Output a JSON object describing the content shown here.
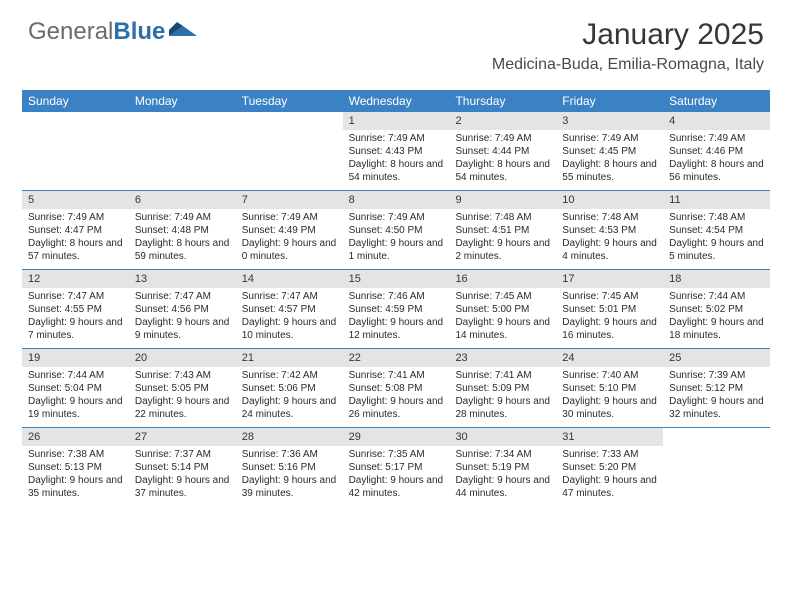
{
  "brand": {
    "part1": "General",
    "part2": "Blue"
  },
  "title": "January 2025",
  "location": "Medicina-Buda, Emilia-Romagna, Italy",
  "colors": {
    "header_bar": "#3b82c4",
    "daynum_bg": "#e4e4e4",
    "logo_gray": "#6b6b6b",
    "logo_blue": "#2f6fa8",
    "text": "#363636"
  },
  "day_headers": [
    "Sunday",
    "Monday",
    "Tuesday",
    "Wednesday",
    "Thursday",
    "Friday",
    "Saturday"
  ],
  "weeks": [
    [
      {
        "n": "",
        "sr": "",
        "ss": "",
        "dl": ""
      },
      {
        "n": "",
        "sr": "",
        "ss": "",
        "dl": ""
      },
      {
        "n": "",
        "sr": "",
        "ss": "",
        "dl": ""
      },
      {
        "n": "1",
        "sr": "Sunrise: 7:49 AM",
        "ss": "Sunset: 4:43 PM",
        "dl": "Daylight: 8 hours and 54 minutes."
      },
      {
        "n": "2",
        "sr": "Sunrise: 7:49 AM",
        "ss": "Sunset: 4:44 PM",
        "dl": "Daylight: 8 hours and 54 minutes."
      },
      {
        "n": "3",
        "sr": "Sunrise: 7:49 AM",
        "ss": "Sunset: 4:45 PM",
        "dl": "Daylight: 8 hours and 55 minutes."
      },
      {
        "n": "4",
        "sr": "Sunrise: 7:49 AM",
        "ss": "Sunset: 4:46 PM",
        "dl": "Daylight: 8 hours and 56 minutes."
      }
    ],
    [
      {
        "n": "5",
        "sr": "Sunrise: 7:49 AM",
        "ss": "Sunset: 4:47 PM",
        "dl": "Daylight: 8 hours and 57 minutes."
      },
      {
        "n": "6",
        "sr": "Sunrise: 7:49 AM",
        "ss": "Sunset: 4:48 PM",
        "dl": "Daylight: 8 hours and 59 minutes."
      },
      {
        "n": "7",
        "sr": "Sunrise: 7:49 AM",
        "ss": "Sunset: 4:49 PM",
        "dl": "Daylight: 9 hours and 0 minutes."
      },
      {
        "n": "8",
        "sr": "Sunrise: 7:49 AM",
        "ss": "Sunset: 4:50 PM",
        "dl": "Daylight: 9 hours and 1 minute."
      },
      {
        "n": "9",
        "sr": "Sunrise: 7:48 AM",
        "ss": "Sunset: 4:51 PM",
        "dl": "Daylight: 9 hours and 2 minutes."
      },
      {
        "n": "10",
        "sr": "Sunrise: 7:48 AM",
        "ss": "Sunset: 4:53 PM",
        "dl": "Daylight: 9 hours and 4 minutes."
      },
      {
        "n": "11",
        "sr": "Sunrise: 7:48 AM",
        "ss": "Sunset: 4:54 PM",
        "dl": "Daylight: 9 hours and 5 minutes."
      }
    ],
    [
      {
        "n": "12",
        "sr": "Sunrise: 7:47 AM",
        "ss": "Sunset: 4:55 PM",
        "dl": "Daylight: 9 hours and 7 minutes."
      },
      {
        "n": "13",
        "sr": "Sunrise: 7:47 AM",
        "ss": "Sunset: 4:56 PM",
        "dl": "Daylight: 9 hours and 9 minutes."
      },
      {
        "n": "14",
        "sr": "Sunrise: 7:47 AM",
        "ss": "Sunset: 4:57 PM",
        "dl": "Daylight: 9 hours and 10 minutes."
      },
      {
        "n": "15",
        "sr": "Sunrise: 7:46 AM",
        "ss": "Sunset: 4:59 PM",
        "dl": "Daylight: 9 hours and 12 minutes."
      },
      {
        "n": "16",
        "sr": "Sunrise: 7:45 AM",
        "ss": "Sunset: 5:00 PM",
        "dl": "Daylight: 9 hours and 14 minutes."
      },
      {
        "n": "17",
        "sr": "Sunrise: 7:45 AM",
        "ss": "Sunset: 5:01 PM",
        "dl": "Daylight: 9 hours and 16 minutes."
      },
      {
        "n": "18",
        "sr": "Sunrise: 7:44 AM",
        "ss": "Sunset: 5:02 PM",
        "dl": "Daylight: 9 hours and 18 minutes."
      }
    ],
    [
      {
        "n": "19",
        "sr": "Sunrise: 7:44 AM",
        "ss": "Sunset: 5:04 PM",
        "dl": "Daylight: 9 hours and 19 minutes."
      },
      {
        "n": "20",
        "sr": "Sunrise: 7:43 AM",
        "ss": "Sunset: 5:05 PM",
        "dl": "Daylight: 9 hours and 22 minutes."
      },
      {
        "n": "21",
        "sr": "Sunrise: 7:42 AM",
        "ss": "Sunset: 5:06 PM",
        "dl": "Daylight: 9 hours and 24 minutes."
      },
      {
        "n": "22",
        "sr": "Sunrise: 7:41 AM",
        "ss": "Sunset: 5:08 PM",
        "dl": "Daylight: 9 hours and 26 minutes."
      },
      {
        "n": "23",
        "sr": "Sunrise: 7:41 AM",
        "ss": "Sunset: 5:09 PM",
        "dl": "Daylight: 9 hours and 28 minutes."
      },
      {
        "n": "24",
        "sr": "Sunrise: 7:40 AM",
        "ss": "Sunset: 5:10 PM",
        "dl": "Daylight: 9 hours and 30 minutes."
      },
      {
        "n": "25",
        "sr": "Sunrise: 7:39 AM",
        "ss": "Sunset: 5:12 PM",
        "dl": "Daylight: 9 hours and 32 minutes."
      }
    ],
    [
      {
        "n": "26",
        "sr": "Sunrise: 7:38 AM",
        "ss": "Sunset: 5:13 PM",
        "dl": "Daylight: 9 hours and 35 minutes."
      },
      {
        "n": "27",
        "sr": "Sunrise: 7:37 AM",
        "ss": "Sunset: 5:14 PM",
        "dl": "Daylight: 9 hours and 37 minutes."
      },
      {
        "n": "28",
        "sr": "Sunrise: 7:36 AM",
        "ss": "Sunset: 5:16 PM",
        "dl": "Daylight: 9 hours and 39 minutes."
      },
      {
        "n": "29",
        "sr": "Sunrise: 7:35 AM",
        "ss": "Sunset: 5:17 PM",
        "dl": "Daylight: 9 hours and 42 minutes."
      },
      {
        "n": "30",
        "sr": "Sunrise: 7:34 AM",
        "ss": "Sunset: 5:19 PM",
        "dl": "Daylight: 9 hours and 44 minutes."
      },
      {
        "n": "31",
        "sr": "Sunrise: 7:33 AM",
        "ss": "Sunset: 5:20 PM",
        "dl": "Daylight: 9 hours and 47 minutes."
      },
      {
        "n": "",
        "sr": "",
        "ss": "",
        "dl": ""
      }
    ]
  ]
}
